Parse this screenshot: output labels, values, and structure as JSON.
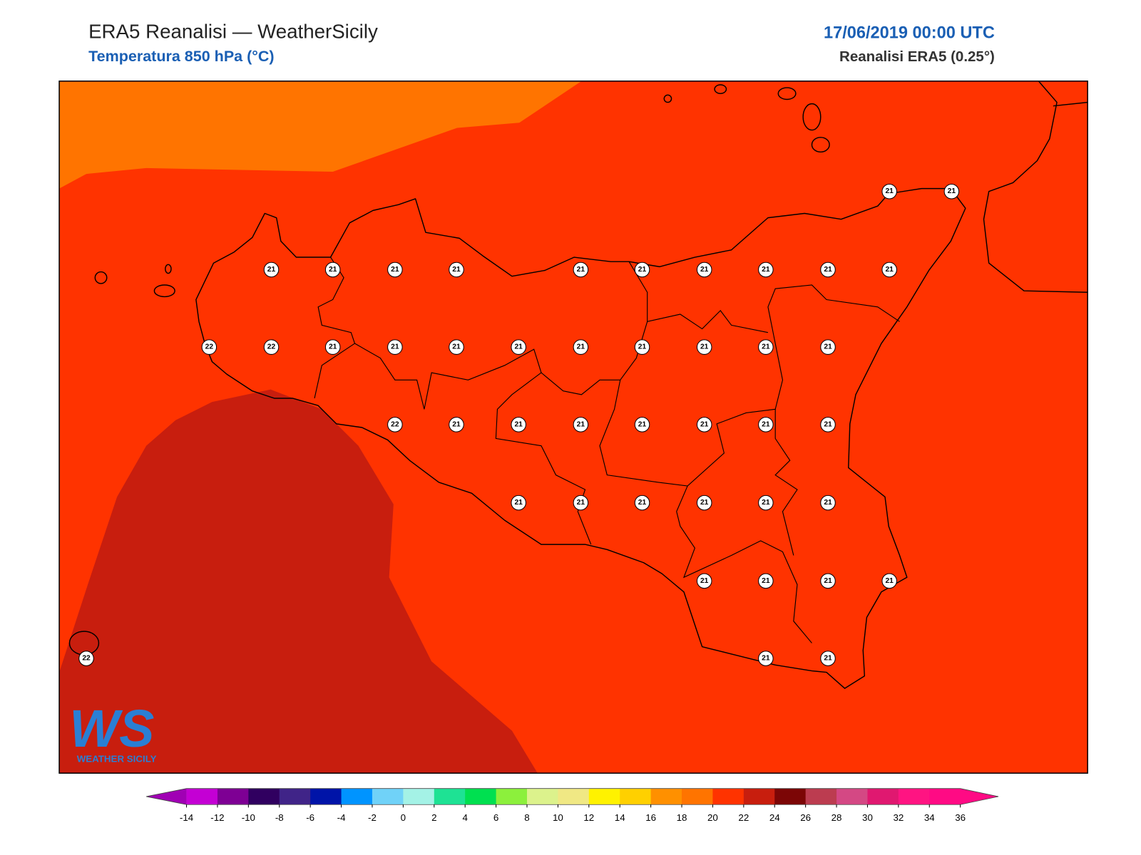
{
  "header": {
    "title": "ERA5 Reanalisi — WeatherSicily",
    "subtitle": "Temperatura 850 hPa (°C)",
    "date": "17/06/2019 00:00 UTC",
    "source": "Reanalisi ERA5 (0.25°)"
  },
  "stations": [
    21,
    21,
    21,
    21,
    21,
    21,
    21,
    21,
    21,
    21,
    21,
    21,
    22,
    22,
    21,
    21,
    21,
    21,
    21,
    21,
    21,
    21,
    21,
    22,
    21,
    21,
    21,
    21,
    21,
    21,
    21,
    21,
    21,
    21,
    21,
    21,
    21,
    21,
    21,
    21,
    21,
    22,
    21,
    21
  ],
  "logo": {
    "mark": "WS",
    "text": "WEATHER SICILY"
  },
  "colorbar": {
    "ticks": [
      -14,
      -12,
      -10,
      -8,
      -6,
      -4,
      -2,
      0,
      2,
      4,
      6,
      8,
      10,
      12,
      14,
      16,
      18,
      20,
      22,
      24,
      26,
      28,
      30,
      32,
      34,
      36
    ],
    "low_color": "#a000b4",
    "high_color": "#ff0a84",
    "colors": [
      "#c400d4",
      "#7e0094",
      "#300060",
      "#402488",
      "#0014a8",
      "#0094ff",
      "#70d2f8",
      "#a4f2e6",
      "#1ee294",
      "#00e050",
      "#8cf03c",
      "#dcf28c",
      "#f0e884",
      "#fff200",
      "#ffd000",
      "#ff9000",
      "#ff7400",
      "#ff3300",
      "#c81e0e",
      "#7c0606",
      "#bc3c50",
      "#d44884",
      "#e01870",
      "#ff1482",
      "#ff0a84"
    ]
  }
}
